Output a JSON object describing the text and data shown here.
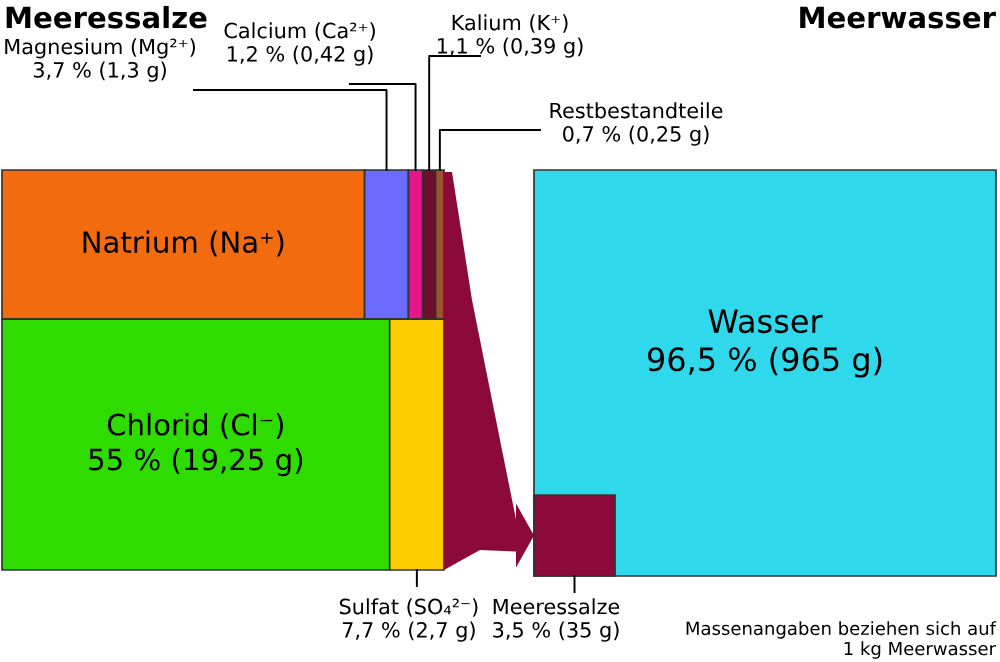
{
  "chart_data": [
    {
      "type": "other",
      "title": "Meeressalze",
      "categories": [
        "Natrium (Na⁺)",
        "Magnesium (Mg²⁺)",
        "Calcium (Ca²⁺)",
        "Kalium (K⁺)",
        "Restbestandteile",
        "Chlorid (Cl⁻)",
        "Sulfat (SO₄²⁻)"
      ],
      "values": [
        null,
        3.7,
        1.2,
        1.1,
        0.7,
        55,
        7.7
      ],
      "value_labels": [
        null,
        "3,7 % (1,3 g)",
        "1,2 % (0,42 g)",
        "1,1 % (0,39 g)",
        "0,7 % (0,25 g)",
        "55 % (19,25 g)",
        "7,7 % (2,7 g)"
      ],
      "colors": [
        "#f26b0f",
        "#6b6bff",
        "#e8158a",
        "#6b0f2a",
        "#a0522d",
        "#2edc00",
        "#ffcc00"
      ]
    },
    {
      "type": "other",
      "title": "Meerwasser",
      "categories": [
        "Wasser",
        "Meeressalze"
      ],
      "values": [
        96.5,
        3.5
      ],
      "value_labels": [
        "96,5 % (965 g)",
        "3,5 % (35 g)"
      ],
      "colors": [
        "#2fd8ea",
        "#8b0a3a"
      ],
      "annotations": [
        "Massenangaben beziehen sich auf\n1 kg Meerwasser"
      ]
    }
  ]
}
